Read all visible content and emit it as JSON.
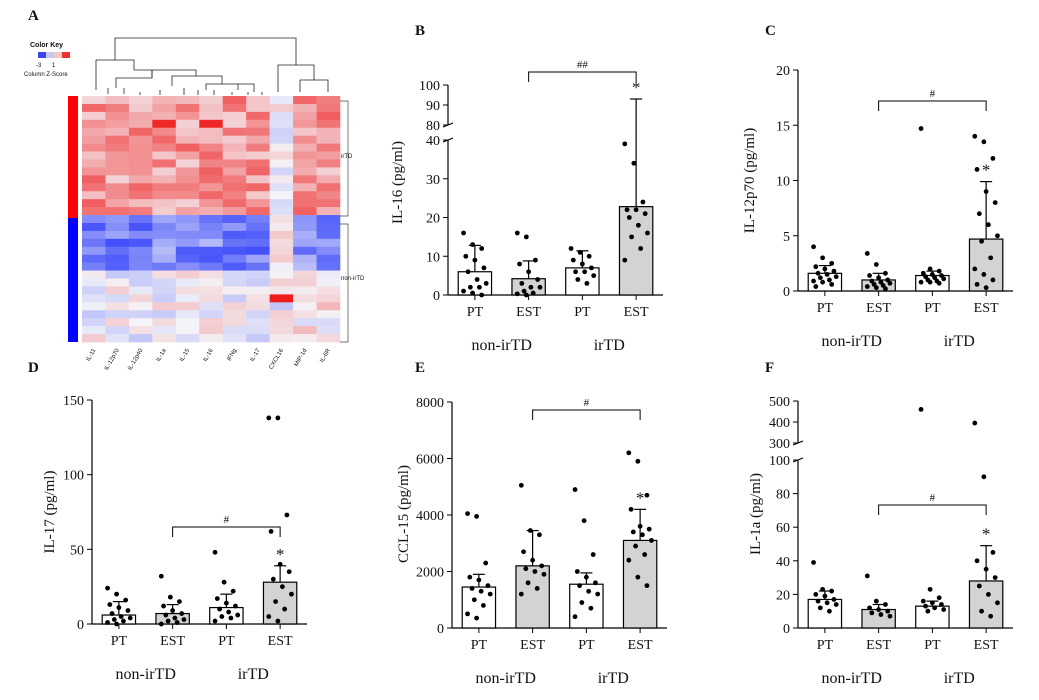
{
  "figure": {
    "panel_letters": [
      "A",
      "B",
      "C",
      "D",
      "E",
      "F"
    ],
    "group_labels": [
      "non-irTD",
      "irTD"
    ],
    "category_labels": [
      "PT",
      "EST",
      "PT",
      "EST"
    ]
  },
  "colors": {
    "bar_pt": "#ffffff",
    "bar_est": "#d3d3d3",
    "stroke": "#000000",
    "heat_low": "#2d3dfa",
    "heat_mid": "#f4f4f8",
    "heat_high": "#ef1c1c",
    "side_irtd": "#ff0000",
    "side_nonirtd": "#0000ff"
  },
  "heatmap": {
    "letter": "A",
    "color_key_title": "Color Key",
    "color_key_ticks": [
      "-3",
      "1"
    ],
    "color_key_label": "Column Z-Score",
    "row_group_labels": [
      "irTD",
      "non-irTD"
    ],
    "columns": [
      "IL-11",
      "IL-12p70",
      "IL-12p40",
      "IL-1a",
      "IL-15",
      "IL-16",
      "IFNg",
      "IL-17",
      "CXCL16",
      "MIP-1d",
      "IL-6R"
    ],
    "n_rows_irtd": 15,
    "n_rows_nonirtd": 16
  },
  "chart_data": [
    {
      "panel": "B",
      "type": "bar",
      "title": "",
      "ylabel": "IL-16 (pg/ml)",
      "categories": [
        "PT",
        "EST",
        "PT",
        "EST"
      ],
      "groups": [
        "non-irTD",
        "irTD"
      ],
      "values": [
        6,
        4.2,
        7,
        22.8
      ],
      "errors": [
        6.8,
        4.6,
        4.4,
        70.2
      ],
      "ylim": [
        0,
        100
      ],
      "broken_axis": [
        40,
        80
      ],
      "ticks": [
        "0",
        "10",
        "20",
        "30",
        "40",
        "80",
        "90",
        "100"
      ],
      "points": [
        [
          16,
          13,
          12,
          10,
          9,
          7,
          6,
          4,
          3,
          2,
          2,
          1,
          0.5,
          0
        ],
        [
          16,
          15,
          9,
          8,
          6,
          4,
          3,
          2,
          2,
          1,
          0.5,
          0.3,
          0
        ],
        [
          12,
          11,
          10,
          9,
          8,
          7,
          6,
          6,
          5,
          4,
          3
        ],
        [
          39,
          34,
          24,
          22,
          22,
          21,
          20,
          18,
          16,
          15,
          12,
          9
        ]
      ],
      "annotations": {
        "star": "*",
        "bracket": "##"
      }
    },
    {
      "panel": "C",
      "type": "bar",
      "title": "",
      "ylabel": "IL-12p70 (pg/ml)",
      "categories": [
        "PT",
        "EST",
        "PT",
        "EST"
      ],
      "groups": [
        "non-irTD",
        "irTD"
      ],
      "values": [
        1.6,
        1.0,
        1.4,
        4.7
      ],
      "errors": [
        0.7,
        0.6,
        0.4,
        5.2
      ],
      "ylim": [
        0,
        20
      ],
      "ticks": [
        "0",
        "5",
        "10",
        "15",
        "20"
      ],
      "points": [
        [
          4,
          3,
          2.5,
          2.2,
          2,
          1.8,
          1.6,
          1.5,
          1.3,
          1.2,
          1,
          0.9,
          0.8,
          0.6,
          0.4
        ],
        [
          3.4,
          2.4,
          1.6,
          1.4,
          1.2,
          1,
          0.9,
          0.8,
          0.7,
          0.6,
          0.5,
          0.4,
          0.3,
          0.2
        ],
        [
          14.7,
          2,
          1.8,
          1.6,
          1.5,
          1.4,
          1.3,
          1.2,
          1.1,
          1,
          0.9,
          0.8,
          0.8,
          0.7
        ],
        [
          14,
          13.5,
          12,
          11,
          9,
          8,
          7,
          6,
          5,
          4.5,
          3,
          2,
          1.5,
          1,
          0.6,
          0.3
        ]
      ],
      "annotations": {
        "star": "*",
        "bracket": "#"
      }
    },
    {
      "panel": "D",
      "type": "bar",
      "title": "",
      "ylabel": "IL-17 (pg/ml)",
      "categories": [
        "PT",
        "EST",
        "PT",
        "EST"
      ],
      "groups": [
        "non-irTD",
        "irTD"
      ],
      "values": [
        6,
        7,
        11,
        28
      ],
      "errors": [
        9,
        6,
        9,
        11
      ],
      "ylim": [
        0,
        150
      ],
      "ticks": [
        "0",
        "50",
        "100",
        "150"
      ],
      "points": [
        [
          24,
          20,
          16,
          13,
          11,
          9,
          7,
          5,
          4,
          3,
          2,
          1,
          0
        ],
        [
          32,
          18,
          15,
          12,
          9,
          7,
          6,
          4,
          3,
          2,
          1,
          0
        ],
        [
          48,
          28,
          22,
          17,
          14,
          12,
          10,
          8,
          6,
          5,
          4,
          2
        ],
        [
          138,
          138,
          73,
          62,
          40,
          35,
          30,
          25,
          20,
          15,
          10,
          5,
          2
        ]
      ],
      "annotations": {
        "star": "*",
        "bracket": "#"
      }
    },
    {
      "panel": "E",
      "type": "bar",
      "title": "",
      "ylabel": "CCL-15 (pg/ml)",
      "categories": [
        "PT",
        "EST",
        "PT",
        "EST"
      ],
      "groups": [
        "non-irTD",
        "irTD"
      ],
      "values": [
        1450,
        2200,
        1550,
        3100
      ],
      "errors": [
        450,
        1250,
        400,
        1100
      ],
      "ylim": [
        0,
        8000
      ],
      "ticks": [
        "0",
        "2000",
        "4000",
        "6000",
        "8000"
      ],
      "points": [
        [
          4050,
          3950,
          2300,
          1800,
          1700,
          1500,
          1400,
          1300,
          1200,
          1000,
          800,
          500,
          350
        ],
        [
          5050,
          3450,
          3300,
          2700,
          2400,
          2200,
          2100,
          2000,
          1900,
          1600,
          1400,
          1200
        ],
        [
          4900,
          3800,
          2600,
          2000,
          1800,
          1600,
          1500,
          1300,
          1200,
          900,
          700,
          400
        ],
        [
          6200,
          5900,
          4700,
          4200,
          3600,
          3500,
          3400,
          3300,
          3100,
          2900,
          2600,
          2400,
          1800,
          1500
        ]
      ],
      "annotations": {
        "star": "*",
        "bracket": "#"
      }
    },
    {
      "panel": "F",
      "type": "bar",
      "title": "",
      "ylabel": "IL-1a (pg/ml)",
      "categories": [
        "PT",
        "EST",
        "PT",
        "EST"
      ],
      "groups": [
        "non-irTD",
        "irTD"
      ],
      "values": [
        17,
        11,
        13,
        28
      ],
      "errors": [
        5,
        3,
        3,
        21
      ],
      "ylim": [
        0,
        500
      ],
      "broken_axis": [
        100,
        300
      ],
      "ticks": [
        "0",
        "20",
        "40",
        "60",
        "80",
        "100",
        "300",
        "400",
        "500"
      ],
      "points": [
        [
          39,
          23,
          22,
          20,
          19,
          17,
          16,
          15,
          14,
          12,
          10
        ],
        [
          31,
          16,
          14,
          12,
          11,
          10,
          9,
          8,
          7
        ],
        [
          460,
          23,
          18,
          16,
          15,
          14,
          13,
          12,
          11,
          10
        ],
        [
          395,
          90,
          45,
          40,
          35,
          30,
          25,
          20,
          15,
          10,
          7
        ]
      ],
      "annotations": {
        "star": "*",
        "bracket": "#"
      }
    }
  ]
}
